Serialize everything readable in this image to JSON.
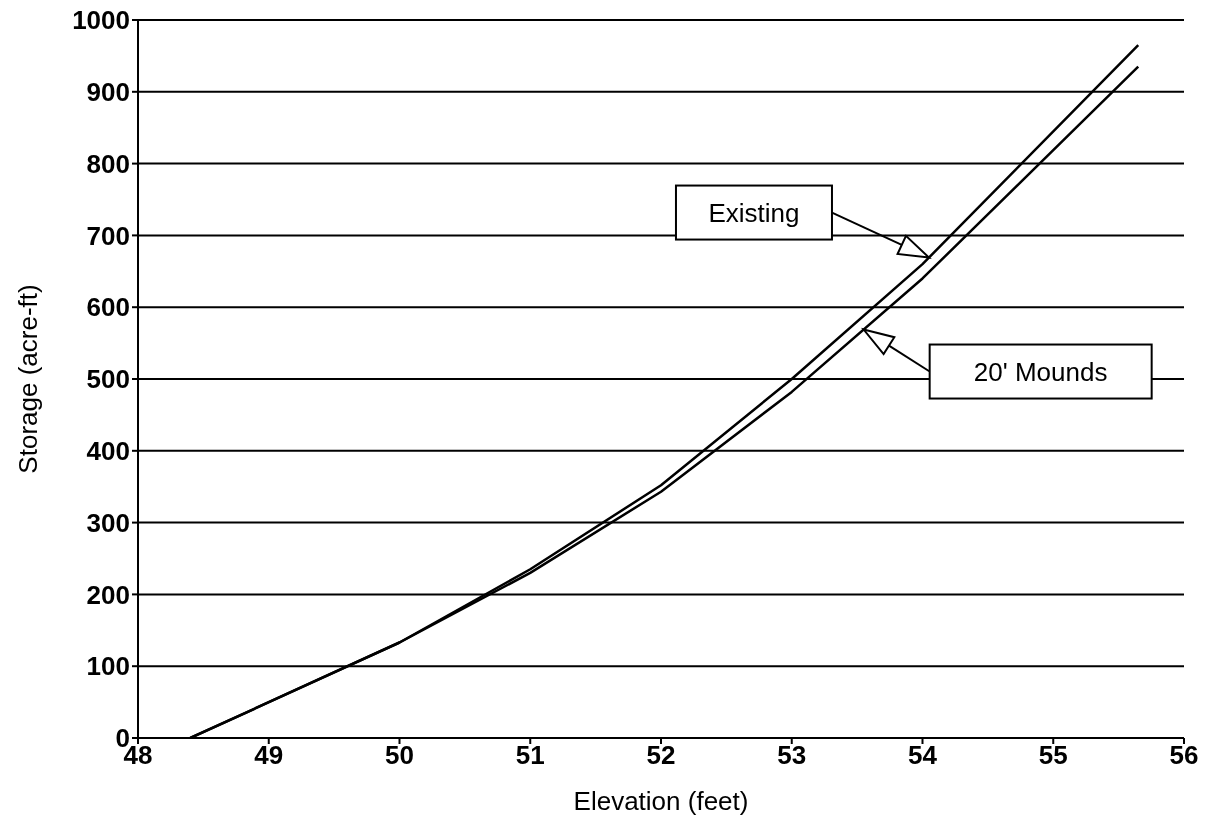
{
  "chart_data": {
    "type": "line",
    "xlabel": "Elevation (feet)",
    "ylabel": "Storage (acre-ft)",
    "xlim": [
      48,
      56
    ],
    "xticks": [
      48,
      49,
      50,
      51,
      52,
      53,
      54,
      55,
      56
    ],
    "ylim": [
      0,
      1000
    ],
    "yticks": [
      0,
      100,
      200,
      300,
      400,
      500,
      600,
      700,
      800,
      900,
      1000
    ],
    "grid": "y",
    "legend": false,
    "marker": "none",
    "line_style": "solid",
    "series": [
      {
        "color": "#000000",
        "x": [
          48.4,
          50,
          51,
          52,
          53,
          54,
          55.65
        ],
        "values": [
          0,
          133,
          235,
          352,
          500,
          660,
          965
        ]
      },
      {
        "color": "#000000",
        "x": [
          48.4,
          50,
          51,
          52,
          53,
          54,
          55.65
        ],
        "values": [
          0,
          133,
          230,
          343,
          482,
          640,
          935
        ]
      }
    ],
    "annotations": [
      "Existing",
      "20' Mounds"
    ]
  }
}
